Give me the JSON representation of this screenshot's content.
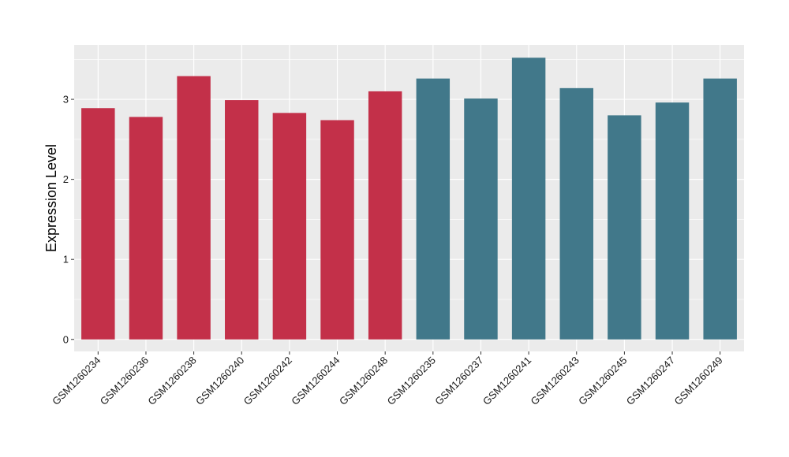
{
  "chart_data": {
    "type": "bar",
    "title": "",
    "xlabel": "",
    "ylabel": "Expression Level",
    "ylim": [
      -0.15,
      3.68
    ],
    "yticks": [
      0,
      1,
      2,
      3
    ],
    "ytick_labels": [
      "0",
      "1",
      "2",
      "3"
    ],
    "grid": true,
    "legend": "none",
    "categories": [
      "GSM1260234",
      "GSM1260236",
      "GSM1260238",
      "GSM1260240",
      "GSM1260242",
      "GSM1260244",
      "GSM1260248",
      "GSM1260235",
      "GSM1260237",
      "GSM1260241",
      "GSM1260243",
      "GSM1260245",
      "GSM1260247",
      "GSM1260249"
    ],
    "values": [
      2.89,
      2.78,
      3.29,
      2.99,
      2.83,
      2.74,
      3.1,
      3.26,
      3.01,
      3.52,
      3.14,
      2.8,
      2.96,
      3.26
    ],
    "groups": [
      "A",
      "A",
      "A",
      "A",
      "A",
      "A",
      "A",
      "B",
      "B",
      "B",
      "B",
      "B",
      "B",
      "B"
    ],
    "colors": {
      "A": "#c33049",
      "B": "#41788a",
      "panel_background": "#ebebeb",
      "grid": "#ffffff"
    }
  }
}
